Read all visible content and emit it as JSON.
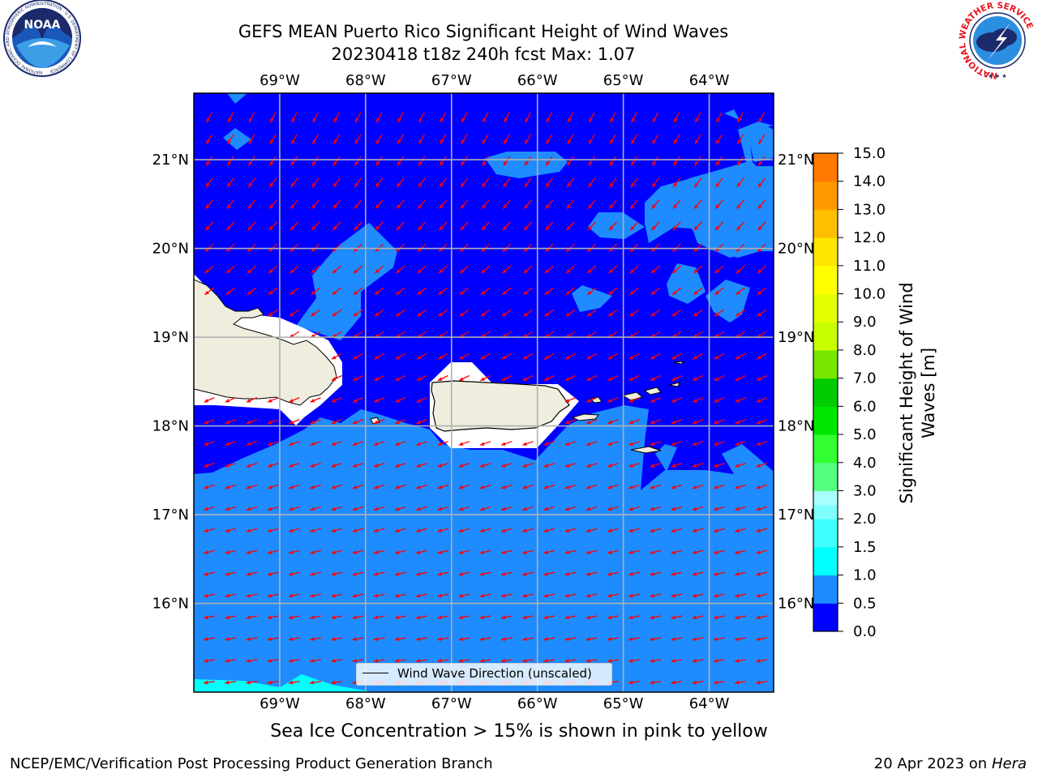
{
  "title": {
    "line1": "GEFS MEAN Puerto Rico Significant Height of Wind Waves",
    "line2": "20230418 t18z 240h fcst   Max: 1.07"
  },
  "logos": {
    "left": {
      "name": "noaa-logo",
      "text": "NOAA",
      "ring_text": "NATIONAL OCEANIC AND ATMOSPHERIC ADMINISTRATION · U.S. DEPARTMENT OF COMMERCE"
    },
    "right": {
      "name": "nws-logo",
      "ring_text": "NATIONAL WEATHER SERVICE"
    }
  },
  "map": {
    "lon_ticks": [
      "69°W",
      "68°W",
      "67°W",
      "66°W",
      "65°W",
      "64°W"
    ],
    "lat_ticks": [
      "21°N",
      "20°N",
      "19°N",
      "18°N",
      "17°N",
      "16°N"
    ],
    "lon_range": [
      -70.0,
      -63.25
    ],
    "lat_range": [
      15.0,
      21.75
    ],
    "grid": true,
    "arrow_color": "#ff0000",
    "arrow_direction": "toward west-southwest",
    "legend_label": "Wind Wave Direction (unscaled)",
    "land_color": "#efedde",
    "colors": {
      "bin_0_0.5": "#0000ff",
      "bin_0.5_1.0": "#1e8cff",
      "bin_1.0_1.5": "#00ffff"
    }
  },
  "colorbar": {
    "label": "Significant Height of Wind Waves [m]",
    "label_line1": "Significant Height of Wind",
    "label_line2": "Waves [m]",
    "ticks": [
      "15.0",
      "14.0",
      "13.0",
      "12.0",
      "11.0",
      "10.0",
      "9.0",
      "8.0",
      "7.0",
      "6.0",
      "5.0",
      "4.0",
      "3.0",
      "2.0",
      "1.5",
      "1.0",
      "0.5",
      "0.0"
    ],
    "colors_bottom_to_top": [
      "#0000ff",
      "#1e8cff",
      "#00ffff",
      "#40ffff",
      "#80ffff",
      "#aaffff",
      "#55ff80",
      "#32ff32",
      "#00e600",
      "#00cc00",
      "#78e600",
      "#c8ff00",
      "#e6ff00",
      "#ffff00",
      "#ffe600",
      "#ffbf00",
      "#ff9900",
      "#ff7a00",
      "#ff5500",
      "#ff2a00",
      "#ff0000"
    ]
  },
  "ice_note": "Sea Ice Concentration > 15% is shown in pink to yellow",
  "footer": {
    "left": "NCEP/EMC/Verification Post Processing Product Generation Branch",
    "right_prefix": "20 Apr 2023 on ",
    "right_host": "Hera"
  }
}
